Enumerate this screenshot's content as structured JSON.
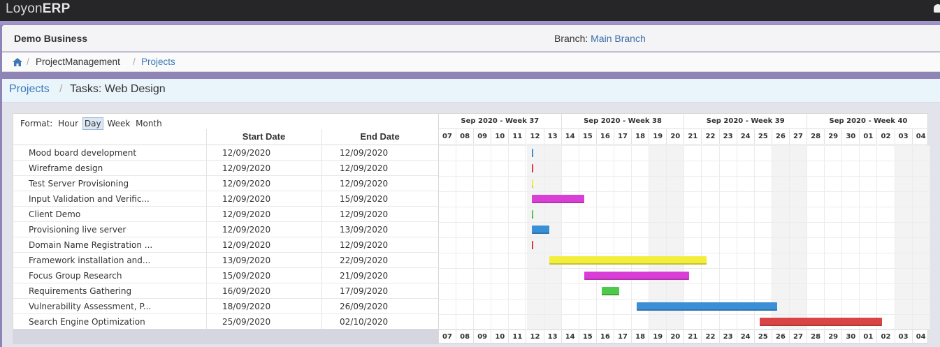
{
  "app": {
    "brand_light": "Loyon",
    "brand_bold": "ERP"
  },
  "business": {
    "name": "Demo Business",
    "branch_label": "Branch:",
    "branch_value": "Main Branch"
  },
  "breadcrumb": {
    "items": [
      "ProjectManagement",
      "Projects"
    ]
  },
  "title": {
    "link": "Projects",
    "current": "Tasks: Web Design"
  },
  "gantt": {
    "format_label": "Format:",
    "formats": [
      "Hour",
      "Day",
      "Week",
      "Month"
    ],
    "selected_format": "Day",
    "columns": [
      "Start Date",
      "End Date"
    ],
    "weeks": [
      "Sep 2020 - Week 37",
      "Sep 2020 - Week 38",
      "Sep 2020 - Week 39",
      "Sep 2020 - Week 40"
    ],
    "days": [
      "07",
      "08",
      "09",
      "10",
      "11",
      "12",
      "13",
      "14",
      "15",
      "16",
      "17",
      "18",
      "19",
      "20",
      "21",
      "22",
      "23",
      "24",
      "25",
      "26",
      "27",
      "28",
      "29",
      "30",
      "01",
      "02",
      "03",
      "04"
    ],
    "tasks": [
      {
        "name": "Mood board development",
        "start": "12/09/2020",
        "end": "12/09/2020",
        "color": "#3a8fd6"
      },
      {
        "name": "Wireframe design",
        "start": "12/09/2020",
        "end": "12/09/2020",
        "color": "#e0393e"
      },
      {
        "name": "Test Server Provisioning",
        "start": "12/09/2020",
        "end": "12/09/2020",
        "color": "#f2ee3a"
      },
      {
        "name": "Input Validation and Verific...",
        "start": "12/09/2020",
        "end": "15/09/2020",
        "color": "#d93ed6"
      },
      {
        "name": "Client Demo",
        "start": "12/09/2020",
        "end": "12/09/2020",
        "color": "#4ec94a"
      },
      {
        "name": "Provisioning live server",
        "start": "12/09/2020",
        "end": "13/09/2020",
        "color": "#3a8fd6"
      },
      {
        "name": "Domain Name Registration ...",
        "start": "12/09/2020",
        "end": "12/09/2020",
        "color": "#e0393e"
      },
      {
        "name": "Framework installation and...",
        "start": "13/09/2020",
        "end": "22/09/2020",
        "color": "#f2ee3a"
      },
      {
        "name": "Focus Group Research",
        "start": "15/09/2020",
        "end": "21/09/2020",
        "color": "#d93ed6"
      },
      {
        "name": "Requirements Gathering",
        "start": "16/09/2020",
        "end": "17/09/2020",
        "color": "#4ec94a"
      },
      {
        "name": "Vulnerability Assessment, P...",
        "start": "18/09/2020",
        "end": "26/09/2020",
        "color": "#3a8fd6"
      },
      {
        "name": "Search Engine Optimization",
        "start": "25/09/2020",
        "end": "02/10/2020",
        "color": "#d94545"
      }
    ]
  }
}
